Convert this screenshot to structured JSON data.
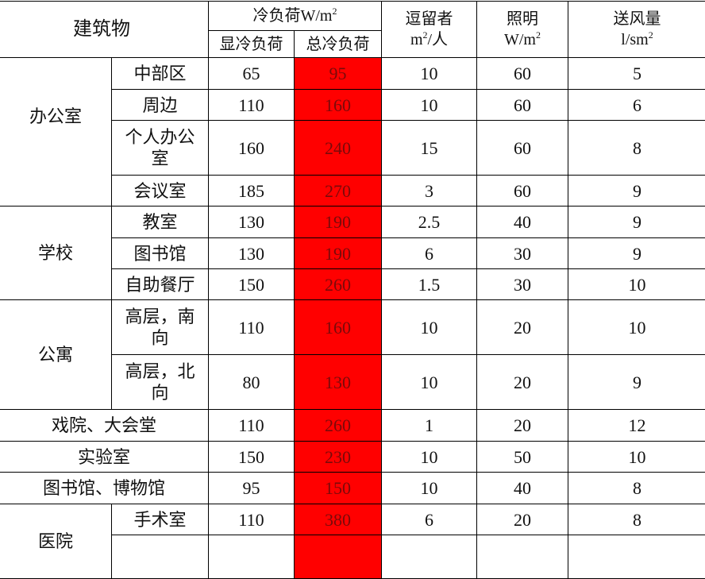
{
  "header": {
    "building": "建筑物",
    "cooling_load": "冷负荷W/m",
    "cooling_load_sup": "2",
    "sensible": "显冷负荷",
    "total": "总冷负荷",
    "occupancy_1": "逗留者",
    "occupancy_2": "m",
    "occupancy_sup": "2",
    "occupancy_3": "/人",
    "lighting_1": "照明",
    "lighting_2": "W/m",
    "lighting_sup": "2",
    "airflow_1": "送风量",
    "airflow_2": "l/sm",
    "airflow_sup": "2"
  },
  "groups": {
    "office": "办公室",
    "school": "学校",
    "apartment": "公寓",
    "hospital": "医院"
  },
  "rows": [
    {
      "name": "中部区",
      "sensible": "65",
      "total": "95",
      "occ": "10",
      "light": "60",
      "air": "5"
    },
    {
      "name": "周边",
      "sensible": "110",
      "total": "160",
      "occ": "10",
      "light": "60",
      "air": "6"
    },
    {
      "name": "个人办公室",
      "sensible": "160",
      "total": "240",
      "occ": "15",
      "light": "60",
      "air": "8"
    },
    {
      "name": "会议室",
      "sensible": "185",
      "total": "270",
      "occ": "3",
      "light": "60",
      "air": "9"
    },
    {
      "name": "教室",
      "sensible": "130",
      "total": "190",
      "occ": "2.5",
      "light": "40",
      "air": "9"
    },
    {
      "name": "图书馆",
      "sensible": "130",
      "total": "190",
      "occ": "6",
      "light": "30",
      "air": "9"
    },
    {
      "name": "自助餐厅",
      "sensible": "150",
      "total": "260",
      "occ": "1.5",
      "light": "30",
      "air": "10"
    },
    {
      "name": "高层，南向",
      "sensible": "110",
      "total": "160",
      "occ": "10",
      "light": "20",
      "air": "10"
    },
    {
      "name": "高层，北向",
      "sensible": "80",
      "total": "130",
      "occ": "10",
      "light": "20",
      "air": "9"
    },
    {
      "name": "戏院、大会堂",
      "sensible": "110",
      "total": "260",
      "occ": "1",
      "light": "20",
      "air": "12"
    },
    {
      "name": "实验室",
      "sensible": "150",
      "total": "230",
      "occ": "10",
      "light": "50",
      "air": "10"
    },
    {
      "name": "图书馆、博物馆",
      "sensible": "95",
      "total": "150",
      "occ": "10",
      "light": "40",
      "air": "8"
    },
    {
      "name": "手术室",
      "sensible": "110",
      "total": "380",
      "occ": "6",
      "light": "20",
      "air": "8"
    }
  ],
  "colors": {
    "highlight": "#ff0000",
    "highlight_text": "#7a0a0a",
    "border": "#000000"
  }
}
